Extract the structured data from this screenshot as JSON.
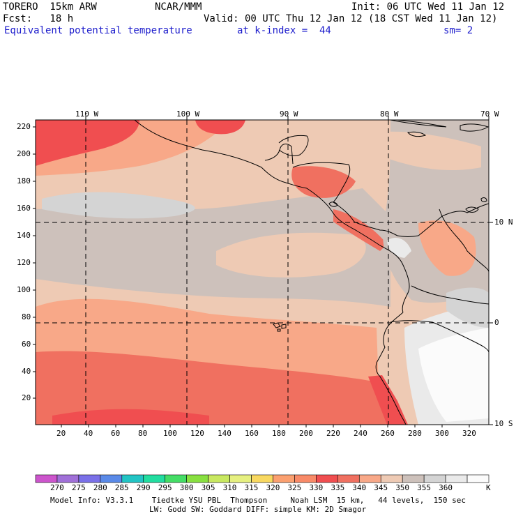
{
  "header": {
    "model": "TORERO  15km ARW",
    "center": "NCAR/MMM",
    "init": "Init: 06 UTC Wed 11 Jan 12",
    "fcst": "Fcst:   18 h",
    "valid": "Valid: 00 UTC Thu 12 Jan 12 (18 CST Wed 11 Jan 12)",
    "field": "Equivalent potential temperature",
    "level": "at k-index =  44",
    "smooth": "sm= 2"
  },
  "map": {
    "lon_labels": [
      "110 W",
      "100 W",
      "90 W",
      "80 W",
      "70 W"
    ],
    "lat_labels": [
      "10 N",
      "0",
      "10 S"
    ],
    "y_ticks": [
      "20",
      "40",
      "60",
      "80",
      "100",
      "120",
      "140",
      "160",
      "180",
      "200",
      "220"
    ],
    "x_ticks": [
      "20",
      "40",
      "60",
      "80",
      "100",
      "120",
      "140",
      "160",
      "180",
      "200",
      "220",
      "240",
      "260",
      "280",
      "300",
      "320"
    ],
    "colors": {
      "c320": "#fba070",
      "c325": "#f88a68",
      "c330": "#f04e50",
      "c335": "#f07060",
      "c340": "#f8a888",
      "c345": "#eecab4",
      "c350": "#cdc1bb",
      "c355": "#d4d4d4",
      "c360": "#eaeaea",
      "c365": "#fbfbfb"
    }
  },
  "colorbar": {
    "unit": "K",
    "labels": [
      "270",
      "275",
      "280",
      "285",
      "290",
      "295",
      "300",
      "305",
      "310",
      "315",
      "320",
      "325",
      "330",
      "335",
      "340",
      "345",
      "350",
      "355",
      "360"
    ],
    "colors": [
      "#cc55cc",
      "#a070d8",
      "#7a70e8",
      "#5a8ae8",
      "#22c4c4",
      "#22dda0",
      "#44dd66",
      "#88e040",
      "#c8e860",
      "#e6f080",
      "#f8d860",
      "#fba070",
      "#f88a68",
      "#f04e50",
      "#f07060",
      "#f8a888",
      "#eecab4",
      "#cdc1bb",
      "#d4d4d4",
      "#eaeaea",
      "#fbfbfb"
    ]
  },
  "footer": {
    "line1": "Model Info: V3.3.1    Tiedtke YSU PBL  Thompson     Noah LSM  15 km,   44 levels,  150 sec",
    "line2": "LW: Godd SW: Goddard DIFF: simple KM: 2D Smagor"
  }
}
